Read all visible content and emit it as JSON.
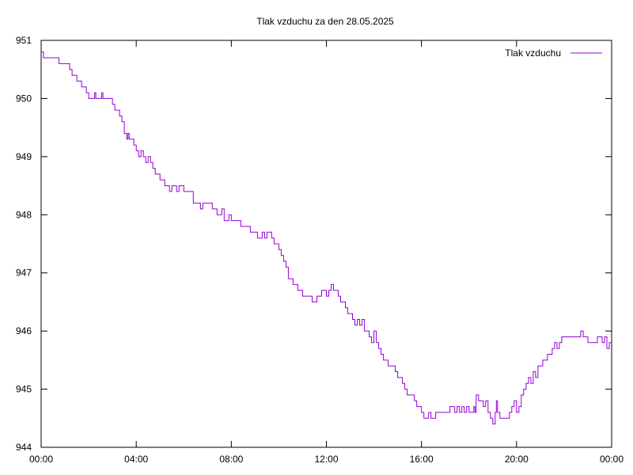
{
  "chart_data": {
    "type": "line",
    "title": "Tlak vzduchu za den 28.05.2025",
    "xlabel": "",
    "ylabel": "",
    "xlim": [
      0,
      24
    ],
    "ylim": [
      944,
      951
    ],
    "xticks": [
      {
        "value": 0,
        "label": "00:00"
      },
      {
        "value": 4,
        "label": "04:00"
      },
      {
        "value": 8,
        "label": "08:00"
      },
      {
        "value": 12,
        "label": "12:00"
      },
      {
        "value": 16,
        "label": "16:00"
      },
      {
        "value": 20,
        "label": "20:00"
      },
      {
        "value": 24,
        "label": "00:00"
      }
    ],
    "yticks": [
      944,
      945,
      946,
      947,
      948,
      949,
      950,
      951
    ],
    "grid": false,
    "legend": {
      "position": "top-right"
    },
    "series": [
      {
        "name": "Tlak vzduchu",
        "color": "#9400d3",
        "x": [
          0,
          0.05,
          0.1,
          0.5,
          0.7,
          0.75,
          1.2,
          1.3,
          1.5,
          1.6,
          1.7,
          1.8,
          1.9,
          2.0,
          2.05,
          2.1,
          2.2,
          2.25,
          2.3,
          2.5,
          2.55,
          2.6,
          2.65,
          2.7,
          2.75,
          2.8,
          2.85,
          3.0,
          3.1,
          3.2,
          3.3,
          3.4,
          3.5,
          3.6,
          3.65,
          3.7,
          3.8,
          3.9,
          4.0,
          4.1,
          4.2,
          4.3,
          4.4,
          4.5,
          4.6,
          4.7,
          4.8,
          4.9,
          5.0,
          5.1,
          5.2,
          5.3,
          5.4,
          5.5,
          5.6,
          5.7,
          5.8,
          6.0,
          6.2,
          6.4,
          6.5,
          6.6,
          6.7,
          6.8,
          7.0,
          7.2,
          7.4,
          7.5,
          7.6,
          7.7,
          7.8,
          7.9,
          8.0,
          8.1,
          8.2,
          8.3,
          8.4,
          8.5,
          8.6,
          8.7,
          8.8,
          8.9,
          9.0,
          9.1,
          9.2,
          9.3,
          9.4,
          9.5,
          9.6,
          9.7,
          9.8,
          9.9,
          10.0,
          10.1,
          10.2,
          10.3,
          10.4,
          10.5,
          10.6,
          10.7,
          10.8,
          10.9,
          11.0,
          11.1,
          11.2,
          11.3,
          11.4,
          11.5,
          11.6,
          11.7,
          11.8,
          11.9,
          12.0,
          12.1,
          12.2,
          12.3,
          12.4,
          12.5,
          12.6,
          12.7,
          12.8,
          12.9,
          13.0,
          13.1,
          13.2,
          13.3,
          13.4,
          13.5,
          13.6,
          13.7,
          13.8,
          13.9,
          14.0,
          14.1,
          14.2,
          14.3,
          14.4,
          14.5,
          14.6,
          14.7,
          14.8,
          14.9,
          15.0,
          15.1,
          15.2,
          15.3,
          15.4,
          15.5,
          15.6,
          15.7,
          15.8,
          15.9,
          16.0,
          16.1,
          16.2,
          16.3,
          16.4,
          16.5,
          16.6,
          16.7,
          16.8,
          16.9,
          17.0,
          17.2,
          17.4,
          17.5,
          17.6,
          17.7,
          17.8,
          17.9,
          18.0,
          18.1,
          18.15,
          18.2,
          18.25,
          18.3,
          18.4,
          18.5,
          18.6,
          18.7,
          18.8,
          18.9,
          19.0,
          19.1,
          19.15,
          19.2,
          19.3,
          19.4,
          19.5,
          19.6,
          19.7,
          19.8,
          19.9,
          20.0,
          20.1,
          20.2,
          20.3,
          20.4,
          20.5,
          20.6,
          20.7,
          20.8,
          20.9,
          21.0,
          21.1,
          21.2,
          21.3,
          21.4,
          21.5,
          21.6,
          21.7,
          21.8,
          21.9,
          22.0,
          22.2,
          22.4,
          22.5,
          22.6,
          22.7,
          22.8,
          23.0,
          23.2,
          23.3,
          23.4,
          23.5,
          23.6,
          23.7,
          23.8,
          23.9,
          24.0
        ],
        "y": [
          950.8,
          950.8,
          950.7,
          950.7,
          950.7,
          950.6,
          950.5,
          950.4,
          950.3,
          950.3,
          950.2,
          950.2,
          950.1,
          950.0,
          950.0,
          950.0,
          950.0,
          950.1,
          950.0,
          950.0,
          950.1,
          950.0,
          950.0,
          950.0,
          950.0,
          950.0,
          950.0,
          949.9,
          949.8,
          949.8,
          949.7,
          949.6,
          949.4,
          949.3,
          949.4,
          949.3,
          949.3,
          949.2,
          949.1,
          949.0,
          949.1,
          949.0,
          948.9,
          949.0,
          948.9,
          948.8,
          948.7,
          948.7,
          948.6,
          948.6,
          948.5,
          948.5,
          948.4,
          948.5,
          948.5,
          948.4,
          948.5,
          948.4,
          948.4,
          948.2,
          948.2,
          948.2,
          948.1,
          948.2,
          948.2,
          948.1,
          948.0,
          948.0,
          948.1,
          947.9,
          947.9,
          948.0,
          947.9,
          947.9,
          947.9,
          947.9,
          947.8,
          947.8,
          947.8,
          947.8,
          947.7,
          947.7,
          947.7,
          947.6,
          947.6,
          947.7,
          947.6,
          947.7,
          947.7,
          947.6,
          947.5,
          947.5,
          947.4,
          947.3,
          947.2,
          947.1,
          946.9,
          946.9,
          946.8,
          946.8,
          946.7,
          946.7,
          946.6,
          946.6,
          946.6,
          946.6,
          946.5,
          946.5,
          946.6,
          946.6,
          946.7,
          946.7,
          946.6,
          946.7,
          946.8,
          946.7,
          946.7,
          946.6,
          946.5,
          946.5,
          946.4,
          946.3,
          946.3,
          946.2,
          946.1,
          946.2,
          946.1,
          946.2,
          946.0,
          946.0,
          945.9,
          945.8,
          946.0,
          945.8,
          945.7,
          945.6,
          945.5,
          945.5,
          945.4,
          945.4,
          945.4,
          945.3,
          945.2,
          945.2,
          945.1,
          945.0,
          944.9,
          944.9,
          944.9,
          944.8,
          944.7,
          944.7,
          944.6,
          944.5,
          944.5,
          944.6,
          944.5,
          944.5,
          944.6,
          944.6,
          944.6,
          944.6,
          944.6,
          944.7,
          944.6,
          944.7,
          944.6,
          944.7,
          944.6,
          944.7,
          944.6,
          944.6,
          944.6,
          944.7,
          944.6,
          944.9,
          944.8,
          944.8,
          944.7,
          944.8,
          944.6,
          944.5,
          944.4,
          944.6,
          944.8,
          944.6,
          944.5,
          944.5,
          944.5,
          944.5,
          944.6,
          944.7,
          944.8,
          944.6,
          944.7,
          944.9,
          945.0,
          945.1,
          945.2,
          945.1,
          945.3,
          945.2,
          945.4,
          945.4,
          945.5,
          945.5,
          945.6,
          945.6,
          945.7,
          945.8,
          945.7,
          945.8,
          945.9,
          945.9,
          945.9,
          945.9,
          945.9,
          945.9,
          946.0,
          945.9,
          945.8,
          945.8,
          945.8,
          945.9,
          945.9,
          945.8,
          945.9,
          945.7,
          945.8,
          945.8
        ]
      }
    ]
  }
}
